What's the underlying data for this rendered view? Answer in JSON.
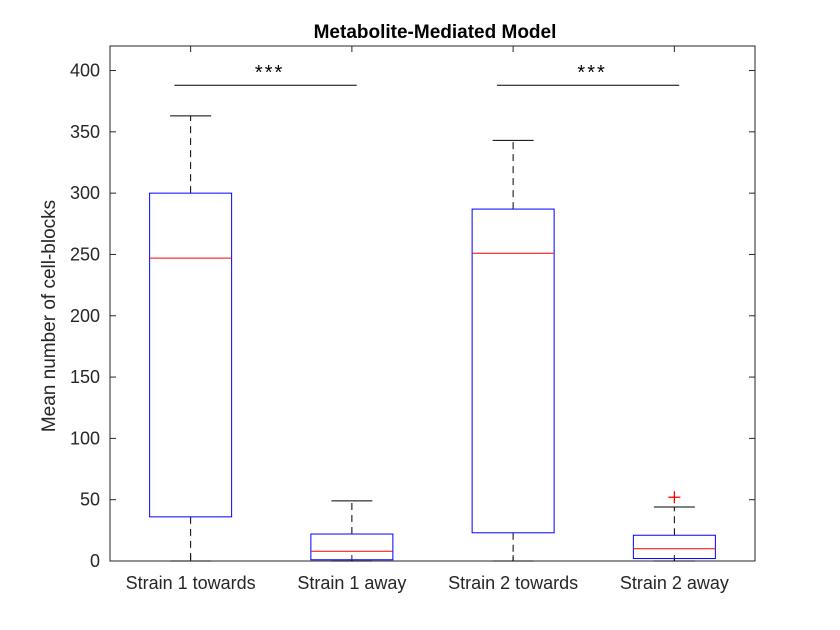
{
  "chart_data": {
    "type": "box",
    "title": "Metabolite-Mediated Model",
    "xlabel": "",
    "ylabel": "Mean number of cell-blocks",
    "ylim": [
      0,
      420
    ],
    "yticks": [
      0,
      50,
      100,
      150,
      200,
      250,
      300,
      350,
      400
    ],
    "categories": [
      "Strain 1 towards",
      "Strain 1 away",
      "Strain 2 towards",
      "Strain 2 away"
    ],
    "boxes": [
      {
        "whisker_low": 0,
        "q1": 36,
        "median": 247,
        "q3": 300,
        "whisker_high": 363,
        "outliers": []
      },
      {
        "whisker_low": 0,
        "q1": 1,
        "median": 8,
        "q3": 22,
        "whisker_high": 49,
        "outliers": []
      },
      {
        "whisker_low": 0,
        "q1": 23,
        "median": 251,
        "q3": 287,
        "whisker_high": 343,
        "outliers": []
      },
      {
        "whisker_low": 0,
        "q1": 2,
        "median": 10,
        "q3": 21,
        "whisker_high": 44,
        "outliers": [
          52
        ]
      }
    ],
    "significance": [
      {
        "from": 0,
        "to": 1,
        "label": "***",
        "y": 388
      },
      {
        "from": 2,
        "to": 3,
        "label": "***",
        "y": 388
      }
    ],
    "colors": {
      "box": "#0000ff",
      "median": "#ff0000",
      "whisker": "#000000",
      "outlier": "#ff0000"
    },
    "grid": false
  }
}
